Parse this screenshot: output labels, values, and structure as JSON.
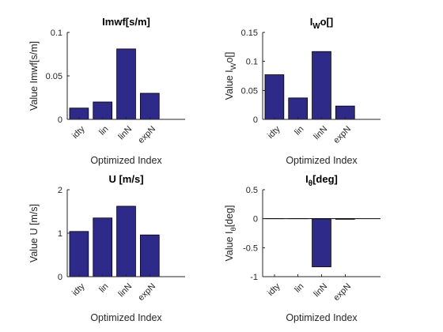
{
  "chart_data": [
    {
      "type": "bar",
      "title": "Imwf[s/m]",
      "xlabel": "Optimized Index",
      "ylabel": "Value Imwf[s/m]",
      "categories": [
        "idty",
        "lin",
        "linN",
        "expN"
      ],
      "values": [
        0.013,
        0.02,
        0.081,
        0.03
      ],
      "ylim": [
        0,
        0.1
      ],
      "yticks": [
        "0",
        "0.05",
        "0.1"
      ]
    },
    {
      "type": "bar",
      "title": "I_Wo[]",
      "title_main": "I",
      "title_sub": "W",
      "title_tail": "o[]",
      "xlabel": "Optimized Index",
      "ylabel": "Value I_Wo[]",
      "ylabel_main": "Value I",
      "ylabel_sub": "W",
      "ylabel_tail": "o[]",
      "categories": [
        "idty",
        "lin",
        "linN",
        "expN"
      ],
      "values": [
        0.077,
        0.037,
        0.117,
        0.023
      ],
      "ylim": [
        0,
        0.15
      ],
      "yticks": [
        "0",
        "0.05",
        "0.1",
        "0.15"
      ]
    },
    {
      "type": "bar",
      "title": "U [m/s]",
      "xlabel": "Optimized Index",
      "ylabel": "Value U [m/s]",
      "categories": [
        "idty",
        "lin",
        "linN",
        "expN"
      ],
      "values": [
        1.04,
        1.35,
        1.62,
        0.96
      ],
      "ylim": [
        0,
        2
      ],
      "yticks": [
        "0",
        "1",
        "2"
      ]
    },
    {
      "type": "bar",
      "title": "I_θ[deg]",
      "title_main": "I",
      "title_sub": "θ",
      "title_tail": "[deg]",
      "xlabel": "Optimized Index",
      "ylabel": "Value I_θ[deg]",
      "ylabel_main": "Value I",
      "ylabel_sub": "θ",
      "ylabel_tail": "[deg]",
      "categories": [
        "idty",
        "lin",
        "linN",
        "expN"
      ],
      "values": [
        0,
        0,
        -0.83,
        -0.01
      ],
      "ylim": [
        -1,
        0.5
      ],
      "yticks": [
        "-1",
        "-0.5",
        "0",
        "0.5"
      ]
    }
  ],
  "colors": {
    "bar": "#2e2a8a",
    "axis": "#262626"
  }
}
